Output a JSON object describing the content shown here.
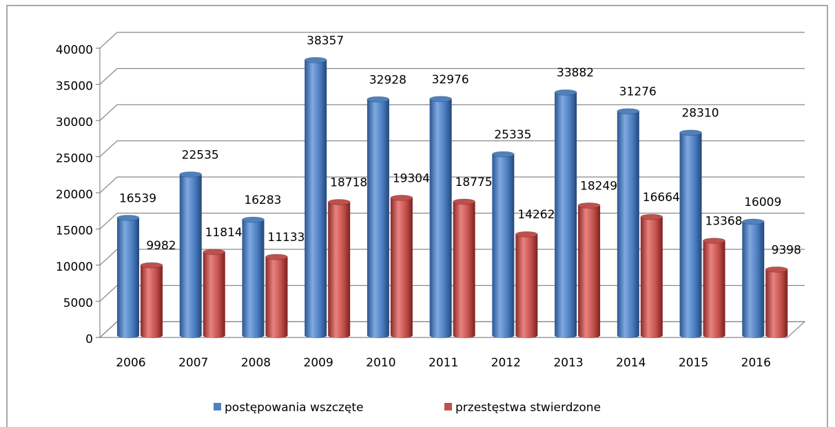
{
  "chart_data": {
    "type": "bar",
    "categories": [
      "2006",
      "2007",
      "2008",
      "2009",
      "2010",
      "2011",
      "2012",
      "2013",
      "2014",
      "2015",
      "2016"
    ],
    "series": [
      {
        "name": "postępowania wszczęte",
        "color": "#4f81bd",
        "values": [
          16539,
          22535,
          16283,
          38357,
          32928,
          32976,
          25335,
          33882,
          31276,
          28310,
          16009
        ]
      },
      {
        "name": "przestęstwa stwierdzone",
        "color": "#c0504d",
        "values": [
          9982,
          11814,
          11133,
          18718,
          19304,
          18775,
          14262,
          18249,
          16664,
          13368,
          9398
        ]
      }
    ],
    "ylim": [
      0,
      40000
    ],
    "yticks": [
      0,
      5000,
      10000,
      15000,
      20000,
      25000,
      30000,
      35000,
      40000
    ],
    "grid": true,
    "legend": "bottom"
  }
}
